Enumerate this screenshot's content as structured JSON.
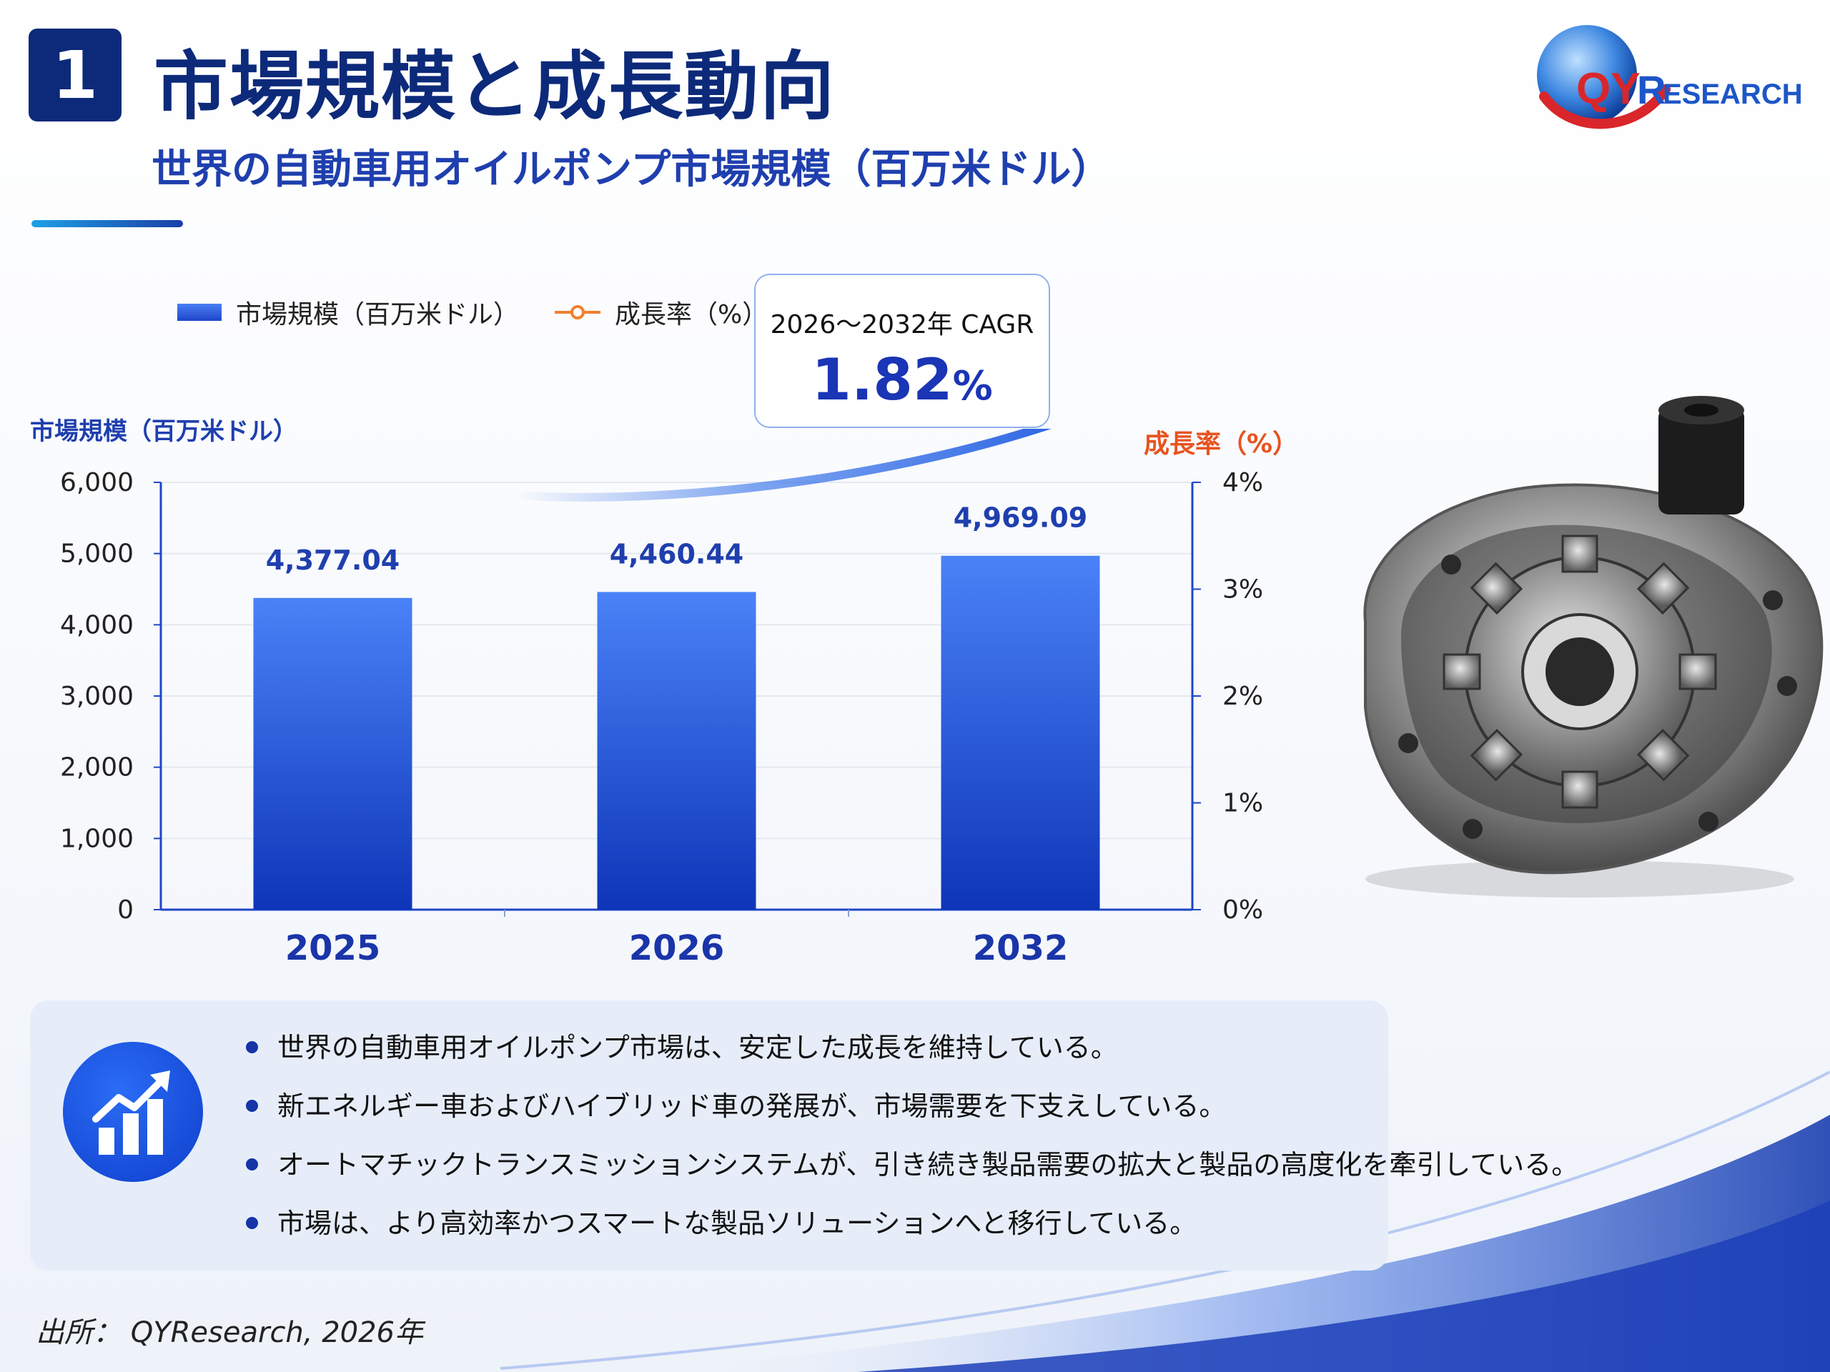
{
  "header": {
    "section_number": "1",
    "title": "市場規模と成長動向",
    "subtitle": "世界の自動車用オイルポンプ市場規模（百万米ドル）"
  },
  "logo": {
    "text_qy": "QY",
    "text_research": "RESEARCH"
  },
  "legend": {
    "bar_label": "市場規模（百万米ドル）",
    "line_label": "成長率（%）"
  },
  "cagr": {
    "label": "2026～2032年 CAGR",
    "value": "1.82",
    "unit": "%"
  },
  "chart_data": {
    "type": "bar",
    "title": "世界の自動車用オイルポンプ市場規模（百万米ドル）",
    "categories": [
      "2025",
      "2026",
      "2032"
    ],
    "series": [
      {
        "name": "市場規模（百万米ドル）",
        "values": [
          4377.04,
          4460.44,
          4969.09
        ]
      }
    ],
    "value_labels": [
      "4,377.04",
      "4,460.44",
      "4,969.09"
    ],
    "ylabel": "市場規模（百万米ドル）",
    "ylim": [
      0,
      6000
    ],
    "yticks": [
      "0",
      "1,000",
      "2,000",
      "3,000",
      "4,000",
      "5,000",
      "6,000"
    ],
    "ytick_values": [
      0,
      1000,
      2000,
      3000,
      4000,
      5000,
      6000
    ],
    "y2label": "成長率（%）",
    "y2lim": [
      0,
      4
    ],
    "y2ticks": [
      "0%",
      "1%",
      "2%",
      "3%",
      "4%"
    ],
    "y2tick_values": [
      0,
      1,
      2,
      3,
      4
    ],
    "grid": true,
    "legend_position": "top-left",
    "colors": {
      "bar_top": "#4a82f7",
      "bar_bottom": "#0e35b8",
      "growth_line": "#f08030",
      "axis": "#1f46c9"
    }
  },
  "insights": {
    "bullets": [
      "世界の自動車用オイルポンプ市場は、安定した成長を維持している。",
      "新エネルギー車およびハイブリッド車の発展が、市場需要を下支えしている。",
      "オートマチックトランスミッションシステムが、引き続き製品需要の拡大と製品の高度化を牽引している。",
      "市場は、より高効率かつスマートな製品ソリューションへと移行している。"
    ]
  },
  "source": "出所： QYResearch, 2026年"
}
